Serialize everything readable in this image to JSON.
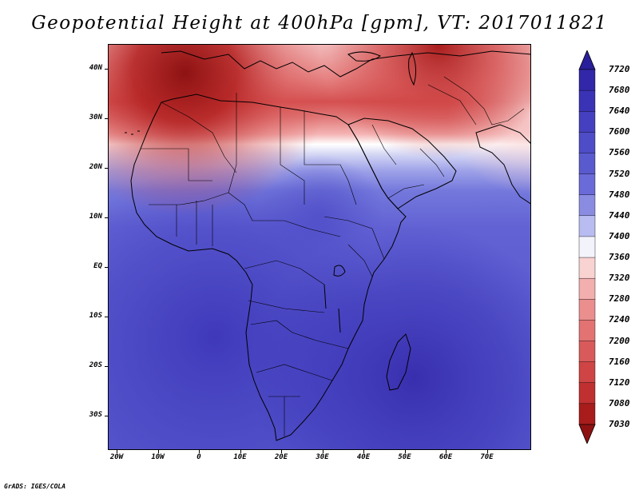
{
  "title": "Geopotential Height at 400hPa [gpm], VT: 2017011821",
  "credit": "GrADS: IGES/COLA",
  "map": {
    "lat_labels": [
      "40N",
      "30N",
      "20N",
      "10N",
      "EQ",
      "10S",
      "20S",
      "30S"
    ],
    "lon_labels": [
      "20W",
      "10W",
      "0",
      "10E",
      "20E",
      "30E",
      "40E",
      "50E",
      "60E",
      "70E"
    ]
  },
  "colorbar": {
    "levels": [
      "7720",
      "7680",
      "7640",
      "7600",
      "7560",
      "7520",
      "7480",
      "7440",
      "7400",
      "7360",
      "7320",
      "7280",
      "7240",
      "7200",
      "7160",
      "7120",
      "7080",
      "7030"
    ],
    "colors": [
      "#2a1f9a",
      "#3227a8",
      "#3a33b6",
      "#4440bf",
      "#4e4cc7",
      "#5a5acf",
      "#6a6ad8",
      "#8a8ce2",
      "#b9bcf0",
      "#f3f3fb",
      "#f9d2d2",
      "#f3aeae",
      "#ea8e8e",
      "#e37272",
      "#d95a5a",
      "#cf4444",
      "#c03030",
      "#a81c1c",
      "#8e1212"
    ]
  }
}
